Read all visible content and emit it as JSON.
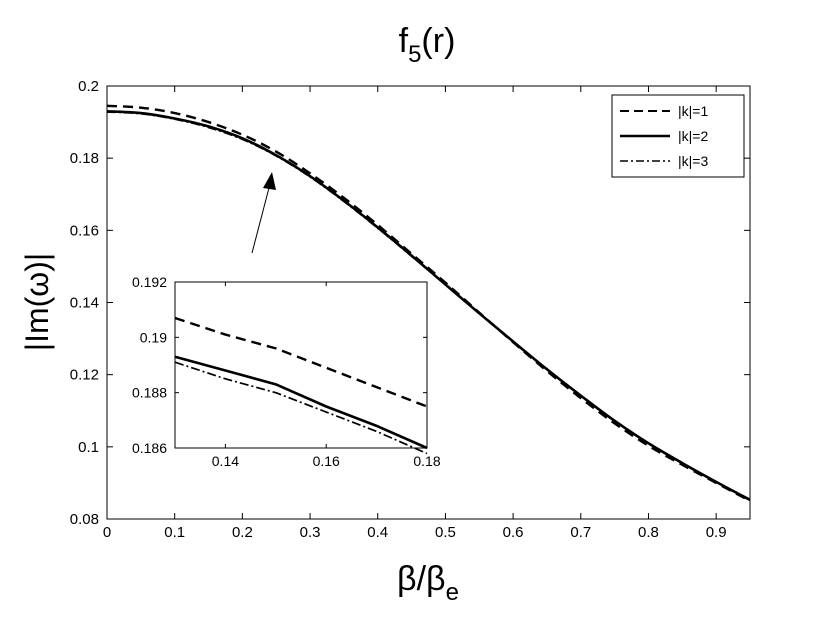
{
  "chart_data": [
    {
      "type": "line",
      "title": "f",
      "title_subscript": "5",
      "title_suffix": "(r)",
      "xlabel": "β/β",
      "xlabel_subscript": "e",
      "ylabel": "|Im(ω)|",
      "xlim": [
        0,
        0.95
      ],
      "ylim": [
        0.08,
        0.2
      ],
      "xticks": [
        "0",
        "0.1",
        "0.2",
        "0.3",
        "0.4",
        "0.5",
        "0.6",
        "0.7",
        "0.8",
        "0.9"
      ],
      "yticks": [
        "0.08",
        "0.1",
        "0.12",
        "0.14",
        "0.16",
        "0.18",
        "0.2"
      ],
      "grid": false,
      "legend_position": "top-right",
      "series": [
        {
          "name": "|k|=1",
          "style": "dashed",
          "x": [
            0,
            0.05,
            0.1,
            0.15,
            0.2,
            0.25,
            0.3,
            0.35,
            0.4,
            0.45,
            0.5,
            0.55,
            0.6,
            0.65,
            0.7,
            0.75,
            0.8,
            0.85,
            0.9,
            0.95
          ],
          "values": [
            0.1945,
            0.194,
            0.1925,
            0.19,
            0.1865,
            0.1818,
            0.1758,
            0.169,
            0.1615,
            0.1535,
            0.1455,
            0.1372,
            0.129,
            0.121,
            0.1135,
            0.1065,
            0.1003,
            0.095,
            0.09,
            0.085
          ]
        },
        {
          "name": "|k|=2",
          "style": "solid",
          "x": [
            0,
            0.05,
            0.1,
            0.15,
            0.2,
            0.25,
            0.3,
            0.35,
            0.4,
            0.45,
            0.5,
            0.55,
            0.6,
            0.65,
            0.7,
            0.75,
            0.8,
            0.85,
            0.9,
            0.95
          ],
          "values": [
            0.193,
            0.1925,
            0.191,
            0.1888,
            0.1855,
            0.1808,
            0.175,
            0.1682,
            0.1608,
            0.153,
            0.145,
            0.137,
            0.1292,
            0.1215,
            0.1142,
            0.1072,
            0.101,
            0.0955,
            0.0903,
            0.0853
          ]
        },
        {
          "name": "|k|=3",
          "style": "dashdot",
          "x": [
            0,
            0.05,
            0.1,
            0.15,
            0.2,
            0.25,
            0.3,
            0.35,
            0.4,
            0.45,
            0.5,
            0.55,
            0.6,
            0.65,
            0.7,
            0.75,
            0.8,
            0.85,
            0.9,
            0.95
          ],
          "values": [
            0.1928,
            0.1923,
            0.1908,
            0.1885,
            0.1852,
            0.1806,
            0.1748,
            0.168,
            0.1606,
            0.1528,
            0.1449,
            0.1369,
            0.1291,
            0.1214,
            0.1141,
            0.1071,
            0.1009,
            0.0954,
            0.0902,
            0.0852
          ]
        }
      ]
    },
    {
      "type": "line",
      "role": "inset",
      "xlim": [
        0.13,
        0.18
      ],
      "ylim": [
        0.186,
        0.192
      ],
      "xticks": [
        "0.14",
        "0.16",
        "0.18"
      ],
      "yticks": [
        "0.186",
        "0.188",
        "0.19",
        "0.192"
      ],
      "grid": false,
      "series": [
        {
          "name": "|k|=1",
          "style": "dashed",
          "x": [
            0.13,
            0.14,
            0.15,
            0.16,
            0.17,
            0.18
          ],
          "values": [
            0.1907,
            0.1901,
            0.1896,
            0.1889,
            0.1882,
            0.1875
          ]
        },
        {
          "name": "|k|=2",
          "style": "solid",
          "x": [
            0.13,
            0.14,
            0.15,
            0.16,
            0.17,
            0.18
          ],
          "values": [
            0.1893,
            0.1888,
            0.1883,
            0.1875,
            0.1868,
            0.186
          ]
        },
        {
          "name": "|k|=3",
          "style": "dashdot",
          "x": [
            0.13,
            0.14,
            0.15,
            0.16,
            0.17,
            0.18
          ],
          "values": [
            0.1891,
            0.1885,
            0.188,
            0.1873,
            0.1866,
            0.1858
          ]
        }
      ]
    }
  ]
}
